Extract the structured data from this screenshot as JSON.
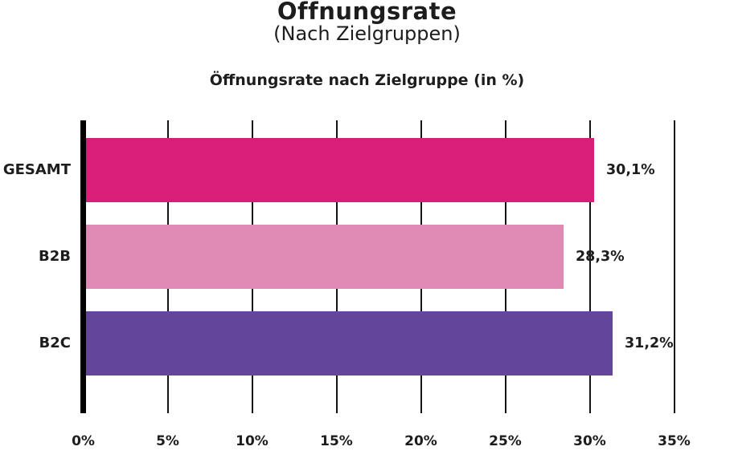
{
  "chart_data": {
    "type": "bar",
    "orientation": "horizontal",
    "title": "Offnungsrate",
    "subtitle": "(Nach Zielgruppen)",
    "chart_heading": "Öffnungsrate nach Zielgruppe (in %)",
    "categories": [
      "GESAMT",
      "B2B",
      "B2C"
    ],
    "values": [
      30.1,
      28.3,
      31.2
    ],
    "value_labels": [
      "30,1%",
      "28,3%",
      "31,2%"
    ],
    "bar_colors": [
      "#D81F77",
      "#DE8AB5",
      "#64459C"
    ],
    "xlabel": "",
    "ylabel": "",
    "xlim": [
      0,
      35
    ],
    "x_tick_step": 5,
    "x_tick_labels": [
      "0%",
      "5%",
      "10%",
      "15%",
      "20%",
      "25%",
      "30%",
      "35%"
    ],
    "grid": "vertical",
    "legend": "none",
    "text_color": "#1d1d1d",
    "axis_color": "#000000"
  }
}
